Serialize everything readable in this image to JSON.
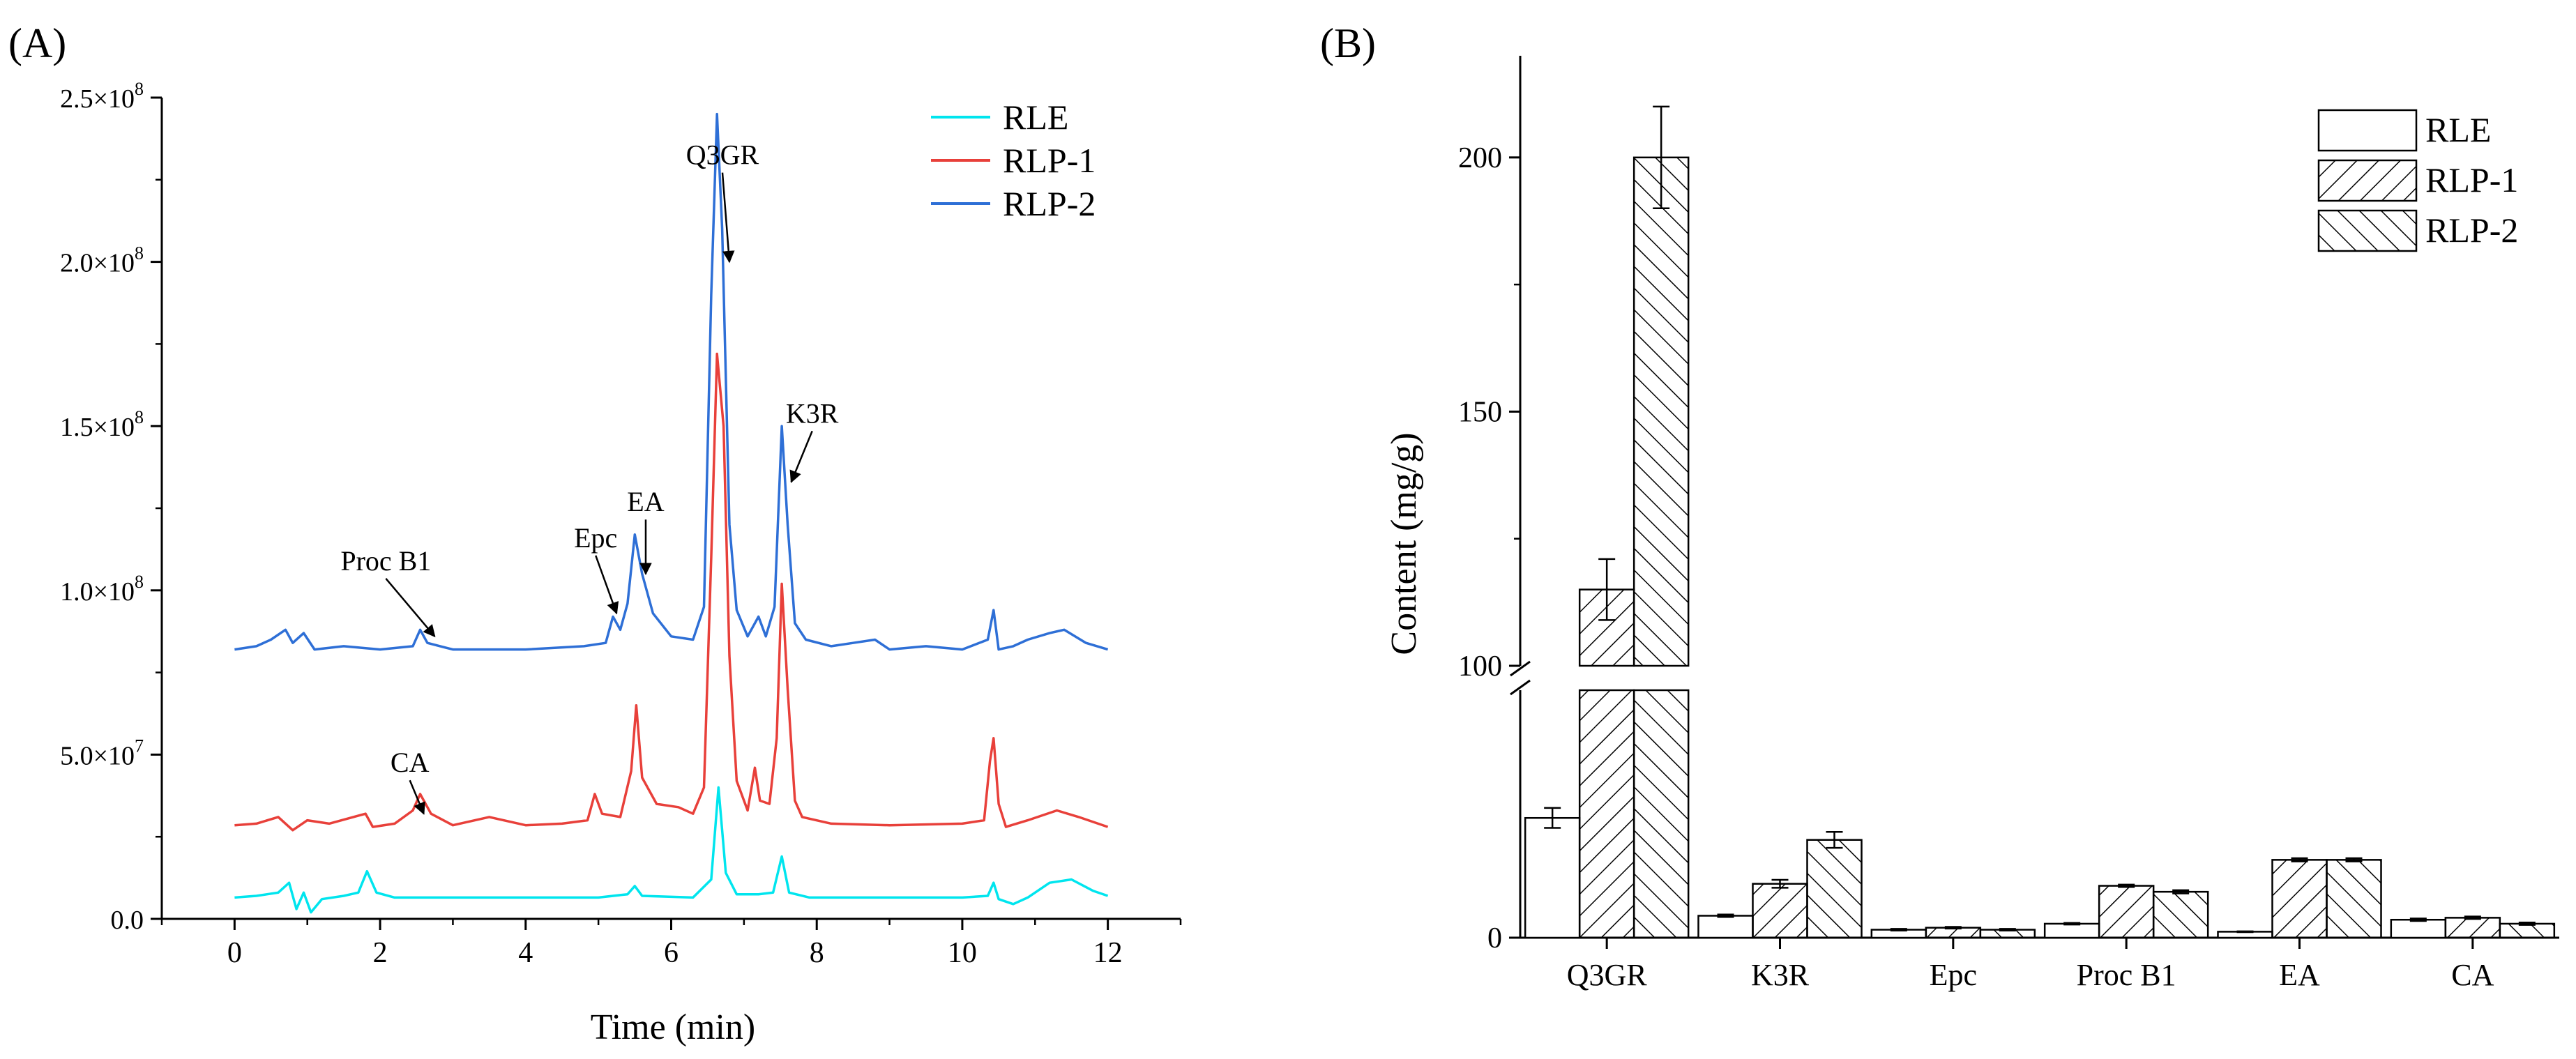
{
  "panels": {
    "a": {
      "label": "(A)"
    },
    "b": {
      "label": "(B)"
    }
  },
  "chart_data": [
    {
      "type": "line",
      "panel": "A",
      "xlabel": "Time (min)",
      "ylabel": "",
      "xlim": [
        -1,
        13
      ],
      "ylim": [
        0,
        250000000
      ],
      "x_ticks": [
        0,
        2,
        4,
        6,
        8,
        10,
        12
      ],
      "x_tick_labels": [
        "0",
        "2",
        "4",
        "6",
        "8",
        "10",
        "12"
      ],
      "y_ticks": [
        0,
        50000000,
        100000000,
        150000000,
        200000000,
        250000000
      ],
      "y_tick_labels": [
        {
          "mantissa": "0.0",
          "exponent": ""
        },
        {
          "mantissa": "5.0×10",
          "exponent": "7"
        },
        {
          "mantissa": "1.0×10",
          "exponent": "8"
        },
        {
          "mantissa": "1.5×10",
          "exponent": "8"
        },
        {
          "mantissa": "2.0×10",
          "exponent": "8"
        },
        {
          "mantissa": "2.5×10",
          "exponent": "8"
        }
      ],
      "legend_position": "top-right",
      "series": [
        {
          "name": "RLE",
          "color": "#00E5EE",
          "points": [
            [
              0,
              6500000.0
            ],
            [
              0.3,
              7000000.0
            ],
            [
              0.6,
              8000000.0
            ],
            [
              0.75,
              11000000.0
            ],
            [
              0.85,
              3000000.0
            ],
            [
              0.95,
              8000000.0
            ],
            [
              1.05,
              2000000.0
            ],
            [
              1.2,
              6000000.0
            ],
            [
              1.5,
              7000000.0
            ],
            [
              1.7,
              8000000.0
            ],
            [
              1.82,
              14500000.0
            ],
            [
              1.95,
              8000000.0
            ],
            [
              2.2,
              6500000.0
            ],
            [
              3,
              6500000.0
            ],
            [
              4,
              6500000.0
            ],
            [
              5,
              6500000.0
            ],
            [
              5.4,
              7500000.0
            ],
            [
              5.5,
              10000000.0
            ],
            [
              5.6,
              7000000.0
            ],
            [
              6.3,
              6500000.0
            ],
            [
              6.55,
              12000000.0
            ],
            [
              6.65,
              40000000.0
            ],
            [
              6.75,
              14000000.0
            ],
            [
              6.9,
              7500000.0
            ],
            [
              7.2,
              7500000.0
            ],
            [
              7.4,
              8000000.0
            ],
            [
              7.52,
              19000000.0
            ],
            [
              7.62,
              8000000.0
            ],
            [
              7.9,
              6500000.0
            ],
            [
              9,
              6500000.0
            ],
            [
              10,
              6500000.0
            ],
            [
              10.35,
              7000000.0
            ],
            [
              10.43,
              11000000.0
            ],
            [
              10.5,
              6000000.0
            ],
            [
              10.7,
              4500000.0
            ],
            [
              10.9,
              6500000.0
            ],
            [
              11.2,
              11000000.0
            ],
            [
              11.5,
              12000000.0
            ],
            [
              11.8,
              8500000.0
            ],
            [
              12,
              7000000.0
            ]
          ]
        },
        {
          "name": "RLP-1",
          "color": "#E8403A",
          "points": [
            [
              0,
              28500000.0
            ],
            [
              0.3,
              29000000.0
            ],
            [
              0.6,
              31000000.0
            ],
            [
              0.8,
              27000000.0
            ],
            [
              1,
              30000000.0
            ],
            [
              1.3,
              29000000.0
            ],
            [
              1.8,
              32000000.0
            ],
            [
              1.9,
              28000000.0
            ],
            [
              2.2,
              29000000.0
            ],
            [
              2.45,
              33000000.0
            ],
            [
              2.55,
              38000000.0
            ],
            [
              2.7,
              32000000.0
            ],
            [
              3,
              28500000.0
            ],
            [
              3.5,
              31000000.0
            ],
            [
              4,
              28500000.0
            ],
            [
              4.5,
              29000000.0
            ],
            [
              4.85,
              30000000.0
            ],
            [
              4.95,
              38000000.0
            ],
            [
              5.05,
              32000000.0
            ],
            [
              5.3,
              31000000.0
            ],
            [
              5.45,
              45000000.0
            ],
            [
              5.52,
              65000000.0
            ],
            [
              5.6,
              43000000.0
            ],
            [
              5.8,
              35000000.0
            ],
            [
              6.1,
              34000000.0
            ],
            [
              6.3,
              32000000.0
            ],
            [
              6.45,
              40000000.0
            ],
            [
              6.55,
              110000000.0
            ],
            [
              6.63,
              172000000.0
            ],
            [
              6.72,
              150000000.0
            ],
            [
              6.8,
              80000000.0
            ],
            [
              6.9,
              42000000.0
            ],
            [
              7.05,
              33000000.0
            ],
            [
              7.15,
              46000000.0
            ],
            [
              7.22,
              36000000.0
            ],
            [
              7.35,
              35000000.0
            ],
            [
              7.45,
              55000000.0
            ],
            [
              7.52,
              102000000.0
            ],
            [
              7.6,
              70000000.0
            ],
            [
              7.7,
              36000000.0
            ],
            [
              7.8,
              31000000.0
            ],
            [
              8.2,
              29000000.0
            ],
            [
              9,
              28500000.0
            ],
            [
              10,
              29000000.0
            ],
            [
              10.3,
              30000000.0
            ],
            [
              10.38,
              48000000.0
            ],
            [
              10.43,
              55000000.0
            ],
            [
              10.5,
              35000000.0
            ],
            [
              10.6,
              28000000.0
            ],
            [
              10.9,
              30000000.0
            ],
            [
              11.3,
              33000000.0
            ],
            [
              11.6,
              31000000.0
            ],
            [
              12,
              28000000.0
            ]
          ]
        },
        {
          "name": "RLP-2",
          "color": "#2E6FD6",
          "points": [
            [
              0,
              82000000.0
            ],
            [
              0.3,
              83000000.0
            ],
            [
              0.5,
              85000000.0
            ],
            [
              0.7,
              88000000.0
            ],
            [
              0.8,
              84000000.0
            ],
            [
              0.95,
              87000000.0
            ],
            [
              1.1,
              82000000.0
            ],
            [
              1.5,
              83000000.0
            ],
            [
              2,
              82000000.0
            ],
            [
              2.45,
              83000000.0
            ],
            [
              2.55,
              88000000.0
            ],
            [
              2.65,
              84000000.0
            ],
            [
              3,
              82000000.0
            ],
            [
              4,
              82000000.0
            ],
            [
              4.8,
              83000000.0
            ],
            [
              5.1,
              84000000.0
            ],
            [
              5.2,
              92000000.0
            ],
            [
              5.3,
              88000000.0
            ],
            [
              5.4,
              96000000.0
            ],
            [
              5.5,
              117000000.0
            ],
            [
              5.6,
              105000000.0
            ],
            [
              5.75,
              93000000.0
            ],
            [
              6,
              86000000.0
            ],
            [
              6.3,
              85000000.0
            ],
            [
              6.45,
              95000000.0
            ],
            [
              6.55,
              190000000.0
            ],
            [
              6.63,
              245000000.0
            ],
            [
              6.7,
              210000000.0
            ],
            [
              6.8,
              120000000.0
            ],
            [
              6.9,
              94000000.0
            ],
            [
              7.05,
              86000000.0
            ],
            [
              7.2,
              92000000.0
            ],
            [
              7.3,
              86000000.0
            ],
            [
              7.42,
              95000000.0
            ],
            [
              7.52,
              150000000.0
            ],
            [
              7.6,
              120000000.0
            ],
            [
              7.7,
              90000000.0
            ],
            [
              7.85,
              85000000.0
            ],
            [
              8.2,
              83000000.0
            ],
            [
              8.5,
              84000000.0
            ],
            [
              8.8,
              85000000.0
            ],
            [
              9,
              82000000.0
            ],
            [
              9.5,
              83000000.0
            ],
            [
              10,
              82000000.0
            ],
            [
              10.35,
              85000000.0
            ],
            [
              10.43,
              94000000.0
            ],
            [
              10.5,
              82000000.0
            ],
            [
              10.7,
              83000000.0
            ],
            [
              10.9,
              85000000.0
            ],
            [
              11.2,
              87000000.0
            ],
            [
              11.4,
              88000000.0
            ],
            [
              11.7,
              84000000.0
            ],
            [
              12,
              82000000.0
            ]
          ]
        }
      ],
      "annotations": [
        {
          "text": "Q3GR",
          "at": [
            6.8,
            200000000.0
          ]
        },
        {
          "text": "K3R",
          "at": [
            7.65,
            133000000.0
          ]
        },
        {
          "text": "EA",
          "at": [
            5.65,
            105000000.0
          ]
        },
        {
          "text": "Epc",
          "at": [
            5.25,
            93000000.0
          ]
        },
        {
          "text": "Proc B1",
          "at": [
            2.75,
            86000000.0
          ]
        },
        {
          "text": "CA",
          "at": [
            2.6,
            32000000.0
          ]
        }
      ]
    },
    {
      "type": "bar",
      "panel": "B",
      "ylabel": "Content (mg/g)",
      "xlabel": "",
      "categories": [
        "Q3GR",
        "K3R",
        "Epc",
        "Proc B1",
        "EA",
        "CA"
      ],
      "y_axis_break": {
        "lower_range": [
          0,
          62
        ],
        "upper_range": [
          100,
          220
        ]
      },
      "y_ticks": [
        0,
        100,
        150,
        200
      ],
      "y_tick_labels": [
        "0",
        "100",
        "150",
        "200"
      ],
      "legend_position": "top-right",
      "series": [
        {
          "name": "RLE",
          "pattern": "none",
          "values": [
            30,
            5.5,
            2,
            3.5,
            1.5,
            4.5
          ],
          "errors": [
            2.5,
            0.3,
            0.2,
            0.2,
            0.1,
            0.3
          ]
        },
        {
          "name": "RLP-1",
          "pattern": "forward-hatch",
          "values": [
            115,
            13.5,
            2.5,
            13,
            19.5,
            5
          ],
          "errors": [
            6,
            1,
            0.2,
            0.3,
            0.4,
            0.3
          ]
        },
        {
          "name": "RLP-2",
          "pattern": "back-hatch",
          "values": [
            200,
            24.5,
            2,
            11.5,
            19.5,
            3.5
          ],
          "errors": [
            10,
            2,
            0.2,
            0.4,
            0.4,
            0.3
          ]
        }
      ]
    }
  ]
}
